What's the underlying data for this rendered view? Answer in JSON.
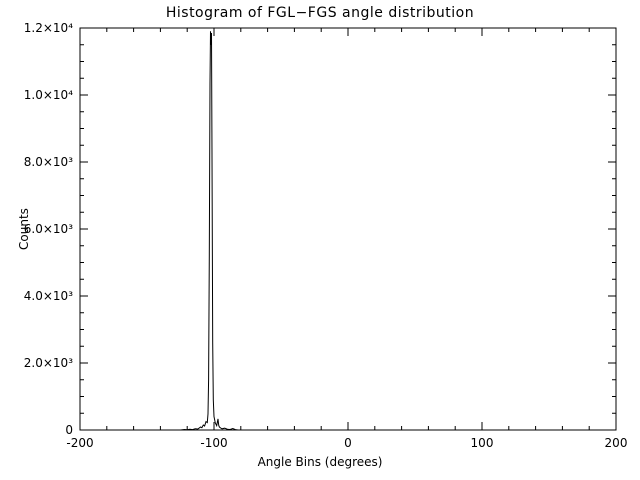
{
  "chart_data": {
    "type": "line",
    "title": "Histogram of FGL−FGS angle distribution",
    "xlabel": "Angle Bins (degrees)",
    "ylabel": "Counts",
    "xlim": [
      -200,
      200
    ],
    "ylim": [
      0,
      12000
    ],
    "grid": false,
    "legend": "none",
    "line_color": "#000000",
    "xticks": [
      {
        "value": -200,
        "label": "-200"
      },
      {
        "value": -100,
        "label": "-100"
      },
      {
        "value": 0,
        "label": "0"
      },
      {
        "value": 100,
        "label": "100"
      },
      {
        "value": 200,
        "label": "200"
      }
    ],
    "yticks": [
      {
        "value": 0,
        "label": "0"
      },
      {
        "value": 2000,
        "label": "2.0×10³"
      },
      {
        "value": 4000,
        "label": "4.0×10³"
      },
      {
        "value": 6000,
        "label": "6.0×10³"
      },
      {
        "value": 8000,
        "label": "8.0×10³"
      },
      {
        "value": 10000,
        "label": "1.0×10⁴"
      },
      {
        "value": 12000,
        "label": "1.2×10⁴"
      }
    ],
    "x_minor_step": 20,
    "y_minor_step": 500,
    "peak_description": "Single sharp peak near -102 degrees reaching about 1.19e4 counts; small residual bumps between -120 and -82 degrees; zero elsewhere",
    "points": [
      [
        -200,
        0
      ],
      [
        -125,
        0
      ],
      [
        -122,
        15
      ],
      [
        -120,
        8
      ],
      [
        -118,
        20
      ],
      [
        -116,
        12
      ],
      [
        -114,
        40
      ],
      [
        -112,
        30
      ],
      [
        -110,
        90
      ],
      [
        -109,
        70
      ],
      [
        -108,
        150
      ],
      [
        -107,
        120
      ],
      [
        -106,
        250
      ],
      [
        -105,
        220
      ],
      [
        -104.5,
        480
      ],
      [
        -104,
        1500
      ],
      [
        -103.5,
        5200
      ],
      [
        -103,
        10350
      ],
      [
        -102.6,
        11900
      ],
      [
        -102.2,
        11500
      ],
      [
        -101.9,
        11850
      ],
      [
        -101.5,
        8200
      ],
      [
        -101,
        2600
      ],
      [
        -100.5,
        900
      ],
      [
        -100,
        400
      ],
      [
        -99,
        210
      ],
      [
        -98,
        130
      ],
      [
        -97,
        330
      ],
      [
        -96.5,
        140
      ],
      [
        -96,
        90
      ],
      [
        -95,
        60
      ],
      [
        -94,
        35
      ],
      [
        -92,
        55
      ],
      [
        -90,
        25
      ],
      [
        -88,
        15
      ],
      [
        -86,
        45
      ],
      [
        -84,
        12
      ],
      [
        -82,
        0
      ],
      [
        -60,
        0
      ],
      [
        0,
        0
      ],
      [
        100,
        0
      ],
      [
        200,
        0
      ]
    ]
  }
}
